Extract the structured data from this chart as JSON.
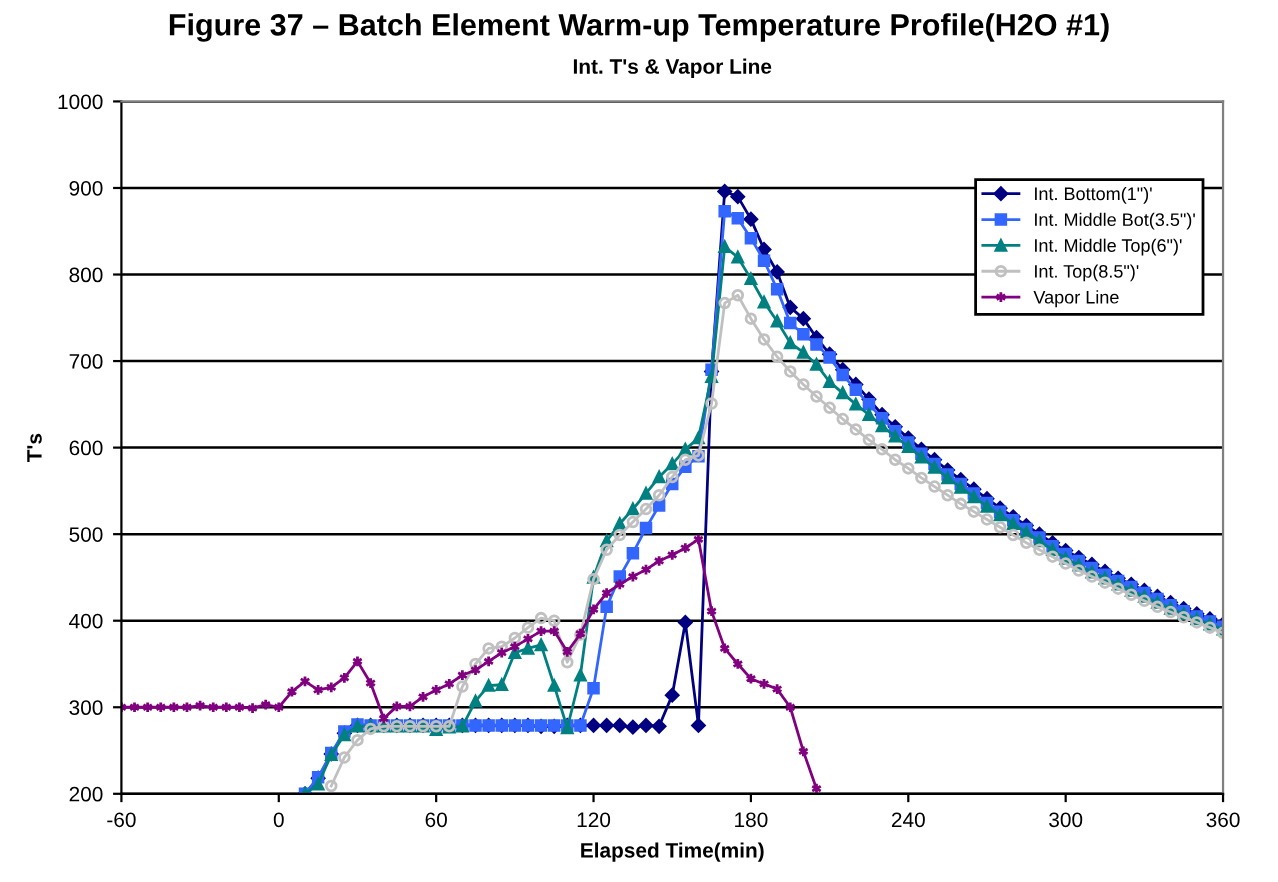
{
  "chart_data": {
    "type": "line",
    "title": "Figure 37 – Batch Element Warm-up Temperature Profile(H2O #1)",
    "subtitle": "Int. T's & Vapor Line",
    "xlabel": "Elapsed Time(min)",
    "ylabel": "T's",
    "xlim": [
      -60,
      360
    ],
    "xticks": [
      -60,
      0,
      60,
      120,
      180,
      240,
      300,
      360
    ],
    "ylim": [
      200,
      1000
    ],
    "yticks": [
      200,
      300,
      400,
      500,
      600,
      700,
      800,
      900,
      1000
    ],
    "grid": "y",
    "legend": "top right",
    "series": [
      {
        "name": "Int. Bottom(1\")'",
        "color": "#000080",
        "marker": "diamond",
        "x": [
          10,
          15,
          20,
          25,
          30,
          35,
          40,
          45,
          50,
          55,
          60,
          65,
          70,
          75,
          80,
          85,
          90,
          95,
          100,
          105,
          110,
          115,
          120,
          125,
          130,
          135,
          140,
          145,
          150,
          155,
          160,
          165,
          170,
          175,
          180,
          185,
          190,
          195,
          200,
          205,
          210,
          215,
          220,
          225,
          230,
          235,
          240,
          245,
          250,
          255,
          260,
          265,
          270,
          275,
          280,
          285,
          290,
          295,
          300,
          305,
          310,
          315,
          320,
          325,
          330,
          335,
          340,
          345,
          350,
          355,
          360
        ],
        "values": [
          200,
          218,
          246,
          270,
          279,
          279,
          279,
          279,
          279,
          279,
          279,
          279,
          279,
          279,
          279,
          279,
          279,
          279,
          278,
          278,
          279,
          279,
          279,
          279,
          279,
          277,
          279,
          278,
          314,
          398,
          279,
          688,
          896,
          890,
          864,
          829,
          803,
          762,
          749,
          727,
          708,
          690,
          673,
          656,
          638,
          624,
          611,
          598,
          586,
          574,
          563,
          552,
          541,
          530,
          520,
          510,
          500,
          490,
          481,
          473,
          465,
          457,
          449,
          442,
          435,
          428,
          421,
          414,
          408,
          402,
          396
        ]
      },
      {
        "name": "Int. Middle Bot(3.5\")'",
        "color": "#3366ff",
        "marker": "square",
        "x": [
          10,
          15,
          20,
          25,
          30,
          35,
          40,
          45,
          50,
          55,
          60,
          65,
          70,
          75,
          80,
          85,
          90,
          95,
          100,
          105,
          110,
          115,
          120,
          125,
          130,
          135,
          140,
          145,
          150,
          155,
          160,
          165,
          170,
          175,
          180,
          185,
          190,
          195,
          200,
          205,
          210,
          215,
          220,
          225,
          230,
          235,
          240,
          245,
          250,
          255,
          260,
          265,
          270,
          275,
          280,
          285,
          290,
          295,
          300,
          305,
          310,
          315,
          320,
          325,
          330,
          335,
          340,
          345,
          350,
          355,
          360
        ],
        "values": [
          200,
          219,
          247,
          272,
          280,
          279,
          279,
          279,
          279,
          279,
          279,
          279,
          279,
          279,
          279,
          279,
          279,
          279,
          279,
          279,
          279,
          279,
          322,
          416,
          451,
          478,
          507,
          533,
          558,
          578,
          590,
          690,
          873,
          865,
          842,
          816,
          783,
          744,
          731,
          719,
          704,
          684,
          667,
          650,
          634,
          619,
          606,
          593,
          581,
          569,
          558,
          547,
          536,
          526,
          516,
          506,
          496,
          486,
          477,
          469,
          461,
          453,
          446,
          439,
          432,
          425,
          418,
          411,
          405,
          399,
          393
        ]
      },
      {
        "name": "Int. Middle Top(6\")'",
        "color": "#008080",
        "marker": "triangle",
        "x": [
          10,
          15,
          20,
          25,
          30,
          35,
          40,
          45,
          50,
          55,
          60,
          65,
          70,
          75,
          80,
          85,
          90,
          95,
          100,
          105,
          110,
          115,
          120,
          125,
          130,
          135,
          140,
          145,
          150,
          155,
          160,
          165,
          170,
          175,
          180,
          185,
          190,
          195,
          200,
          205,
          210,
          215,
          220,
          225,
          230,
          235,
          240,
          245,
          250,
          255,
          260,
          265,
          270,
          275,
          280,
          285,
          290,
          295,
          300,
          305,
          310,
          315,
          320,
          325,
          330,
          335,
          340,
          345,
          350,
          355,
          360
        ],
        "values": [
          200,
          211,
          245,
          268,
          278,
          278,
          278,
          278,
          278,
          278,
          274,
          277,
          278,
          307,
          325,
          326,
          363,
          368,
          372,
          325,
          276,
          337,
          450,
          492,
          512,
          529,
          547,
          566,
          581,
          598,
          611,
          682,
          832,
          820,
          795,
          768,
          746,
          721,
          710,
          696,
          676,
          663,
          650,
          638,
          625,
          613,
          601,
          589,
          577,
          565,
          554,
          543,
          532,
          522,
          512,
          502,
          492,
          482,
          472,
          464,
          456,
          449,
          442,
          435,
          428,
          421,
          414,
          408,
          402,
          396,
          390
        ]
      },
      {
        "name": "Int. Top(8.5\")'",
        "color": "#c0c0c0",
        "marker": "circle",
        "x": [
          20,
          25,
          30,
          35,
          40,
          45,
          50,
          55,
          60,
          65,
          70,
          75,
          80,
          85,
          90,
          95,
          100,
          105,
          110,
          115,
          120,
          125,
          130,
          135,
          140,
          145,
          150,
          155,
          160,
          165,
          170,
          175,
          180,
          185,
          190,
          195,
          200,
          205,
          210,
          215,
          220,
          225,
          230,
          235,
          240,
          245,
          250,
          255,
          260,
          265,
          270,
          275,
          280,
          285,
          290,
          295,
          300,
          305,
          310,
          315,
          320,
          325,
          330,
          335,
          340,
          345,
          350,
          355,
          360
        ],
        "values": [
          209,
          242,
          262,
          275,
          278,
          278,
          278,
          278,
          278,
          278,
          324,
          350,
          368,
          370,
          380,
          392,
          403,
          400,
          352,
          384,
          448,
          482,
          499,
          514,
          529,
          545,
          566,
          586,
          591,
          651,
          767,
          776,
          749,
          725,
          705,
          688,
          673,
          659,
          646,
          633,
          621,
          609,
          598,
          586,
          576,
          565,
          555,
          545,
          535,
          526,
          517,
          508,
          499,
          490,
          482,
          474,
          466,
          458,
          451,
          444,
          437,
          430,
          423,
          416,
          410,
          404,
          398,
          392,
          386
        ]
      },
      {
        "name": "Vapor Line",
        "color": "#800080",
        "marker": "cross",
        "x": [
          -60,
          -55,
          -50,
          -45,
          -40,
          -35,
          -30,
          -25,
          -20,
          -15,
          -10,
          -5,
          0,
          5,
          10,
          15,
          20,
          25,
          30,
          35,
          40,
          45,
          50,
          55,
          60,
          65,
          70,
          75,
          80,
          85,
          90,
          95,
          100,
          105,
          110,
          115,
          120,
          125,
          130,
          135,
          140,
          145,
          150,
          155,
          160,
          165,
          170,
          175,
          180,
          185,
          190,
          195,
          200,
          205
        ],
        "values": [
          300,
          300,
          300,
          300,
          300,
          300,
          302,
          300,
          300,
          300,
          299,
          303,
          300,
          318,
          330,
          320,
          323,
          334,
          353,
          328,
          287,
          301,
          301,
          312,
          320,
          327,
          337,
          343,
          353,
          363,
          370,
          379,
          388,
          388,
          364,
          385,
          413,
          432,
          442,
          451,
          459,
          469,
          476,
          484,
          494,
          411,
          368,
          350,
          333,
          327,
          321,
          300,
          249,
          206
        ]
      }
    ]
  }
}
